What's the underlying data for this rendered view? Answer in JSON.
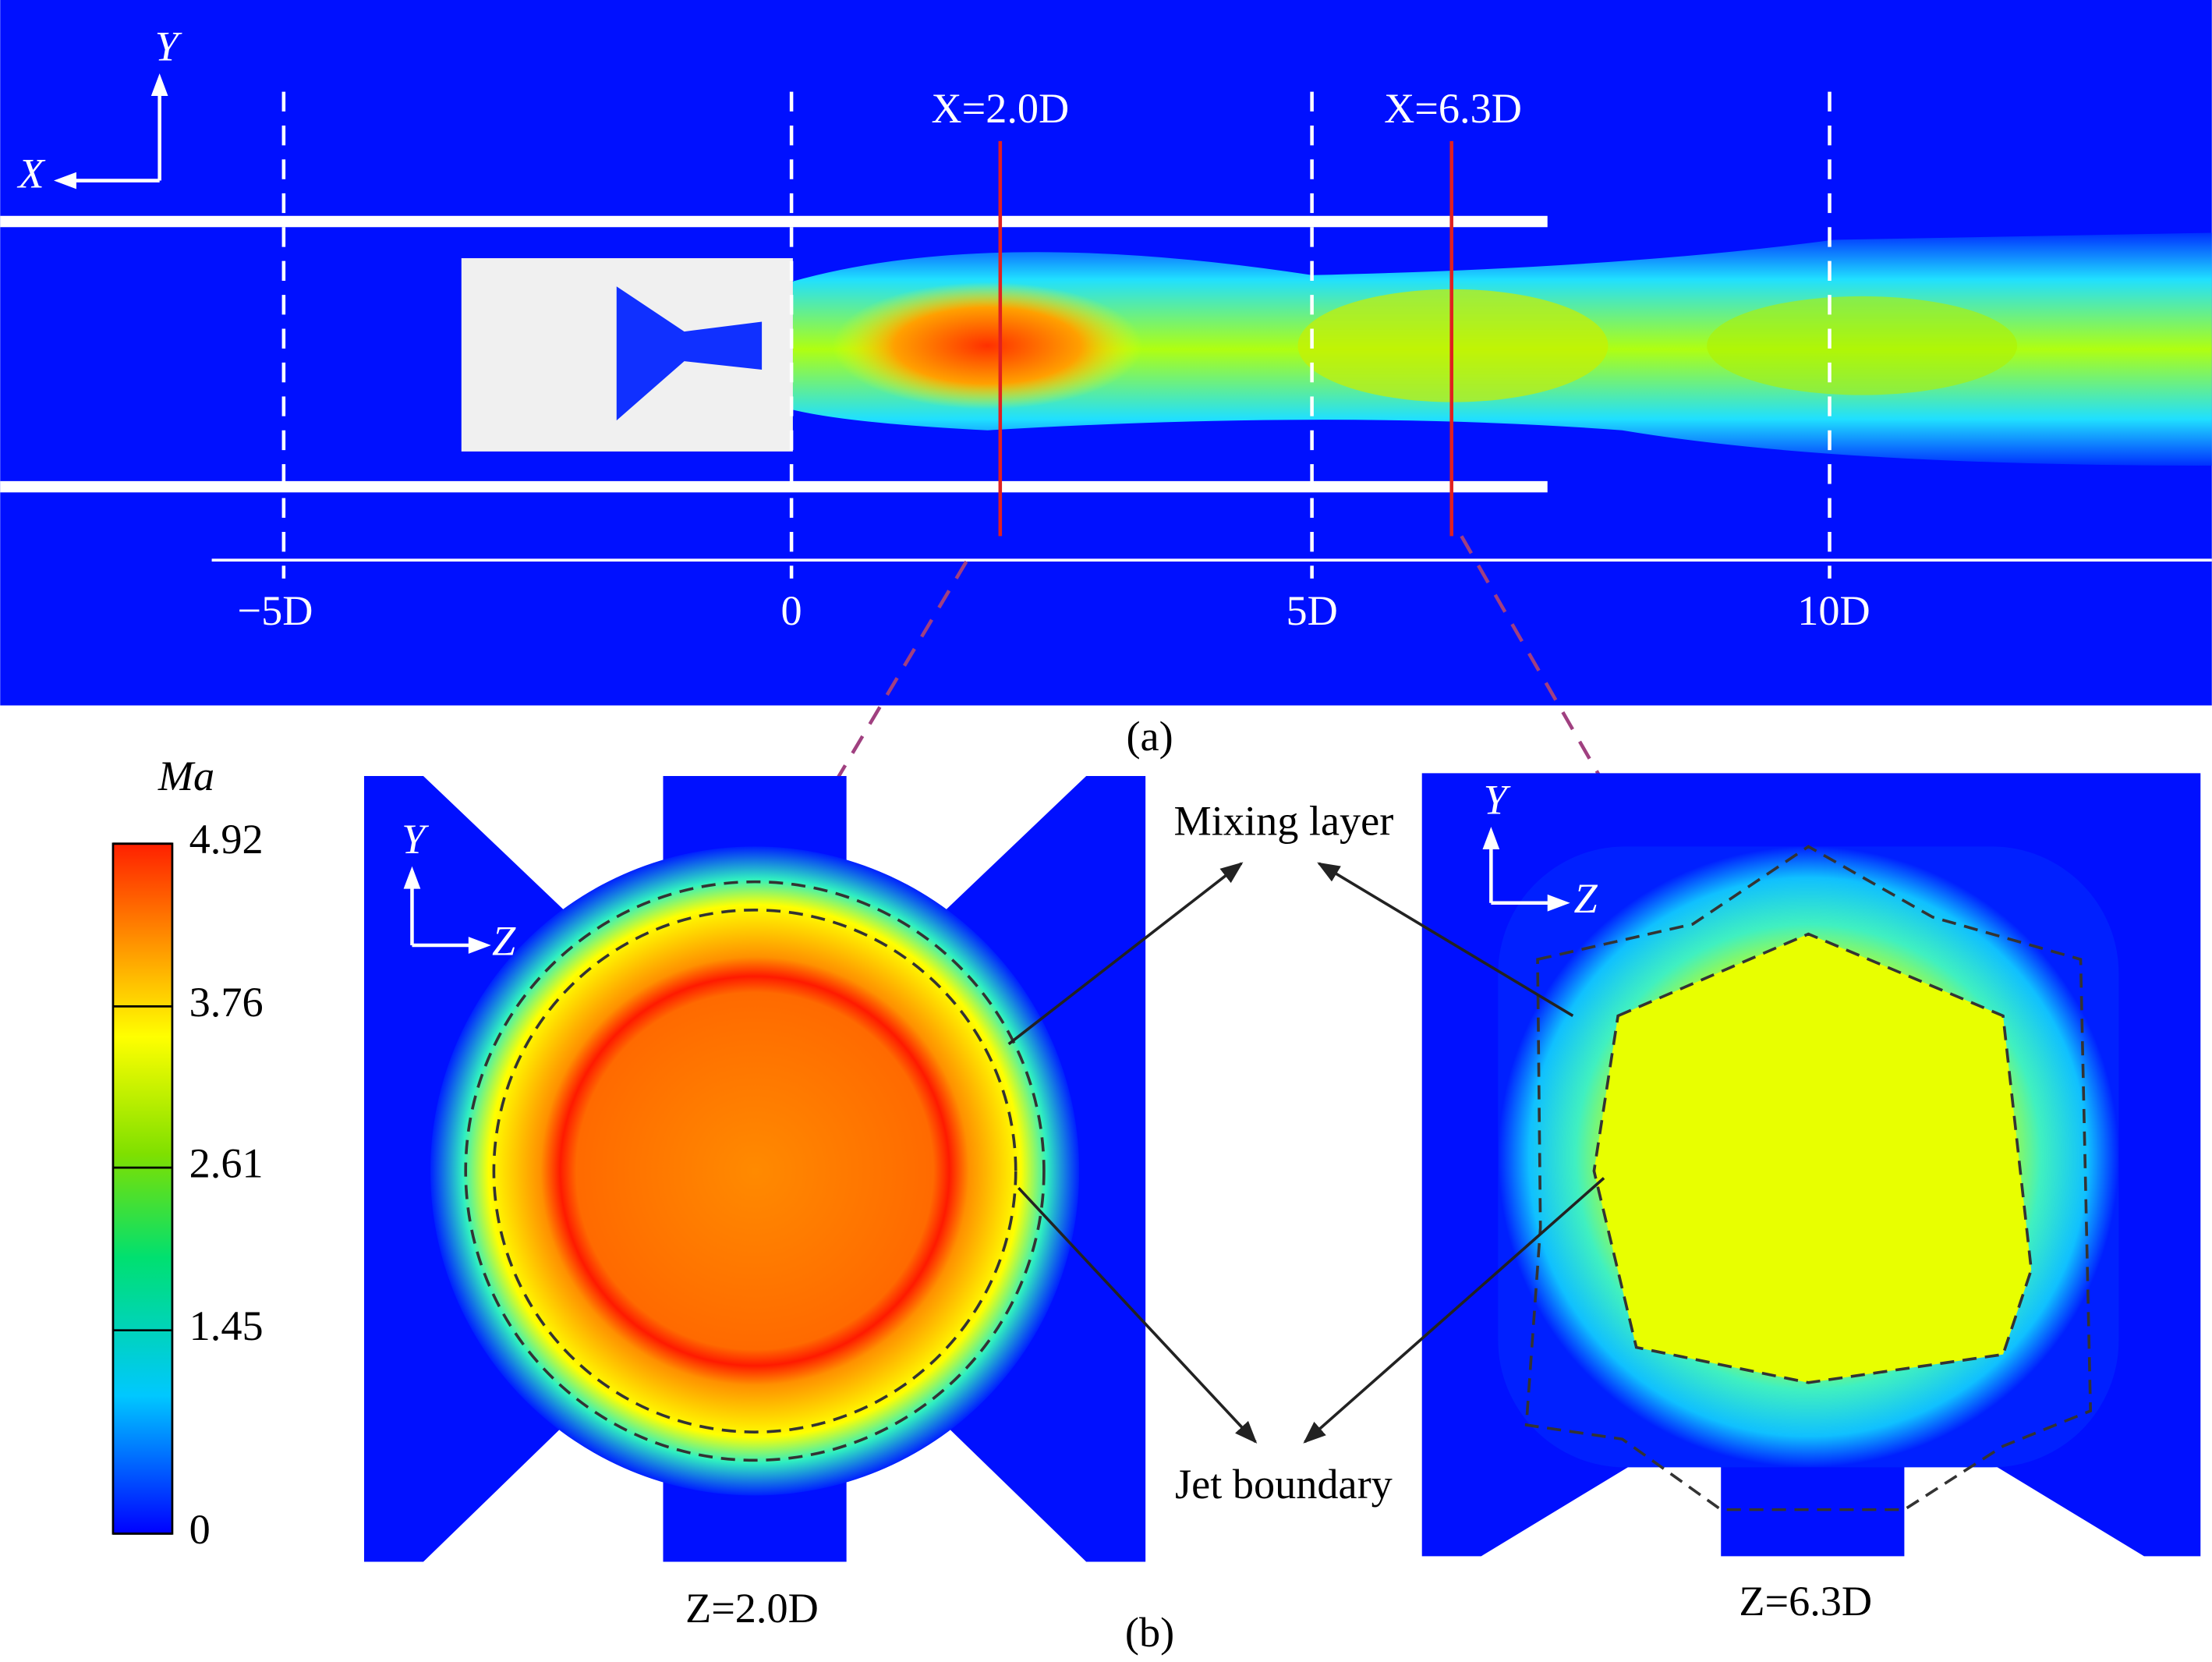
{
  "panel_a": {
    "axis_y": "Y",
    "axis_x": "X",
    "sections": [
      "X=2.0D",
      "X=6.3D"
    ],
    "positions": [
      "−5D",
      "0",
      "5D",
      "10D"
    ],
    "caption": "(a)"
  },
  "colorbar": {
    "title": "Ma",
    "ticks": [
      4.92,
      3.76,
      2.61,
      1.45,
      0
    ]
  },
  "panel_b": {
    "left": {
      "axis_y": "Y",
      "axis_z": "Z",
      "label": "Z=2.0D"
    },
    "right": {
      "axis_y": "Y",
      "axis_z": "Z",
      "label": "Z=6.3D"
    },
    "annotations": [
      "Mixing layer",
      "Jet boundary"
    ],
    "caption": "(b)"
  }
}
